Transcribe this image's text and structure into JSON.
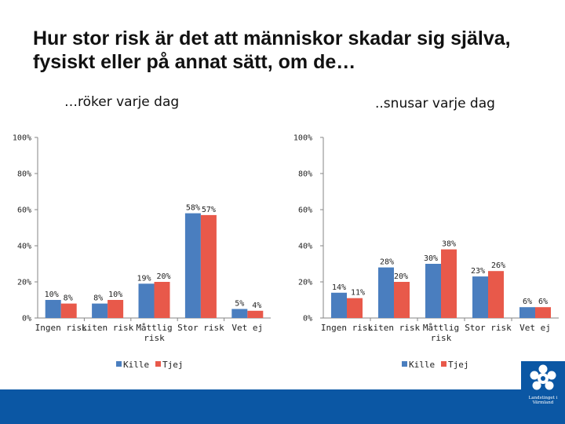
{
  "slide": {
    "title": "Hur stor risk är det att människor skadar sig själva, fysiskt eller på annat sätt, om de…",
    "logo_text": "Landstinget i Värmland"
  },
  "colors": {
    "kille": "#4a7ebf",
    "tjej": "#e8594a",
    "axis": "#868686",
    "band": "#0b57a4"
  },
  "chart_data": [
    {
      "type": "bar",
      "title": "…röker varje dag",
      "categories": [
        "Ingen risk",
        "Liten risk",
        "Måttlig risk",
        "Stor risk",
        "Vet ej"
      ],
      "category_lines": [
        [
          "Ingen risk"
        ],
        [
          "Liten risk"
        ],
        [
          "Måttlig",
          "risk"
        ],
        [
          "Stor risk"
        ],
        [
          "Vet ej"
        ]
      ],
      "series": [
        {
          "name": "Kille",
          "values": [
            10,
            8,
            19,
            58,
            5
          ],
          "labels": [
            "10%",
            "8%",
            "19%",
            "58%",
            "5%"
          ]
        },
        {
          "name": "Tjej",
          "values": [
            8,
            10,
            20,
            57,
            4
          ],
          "labels": [
            "8%",
            "10%",
            "20%",
            "57%",
            "4%"
          ]
        }
      ],
      "yticks": [
        "0%",
        "20%",
        "40%",
        "60%",
        "80%",
        "100%"
      ],
      "ylim": [
        0,
        100
      ],
      "legend": [
        "Kille",
        "Tjej"
      ],
      "legend_position": "bottom"
    },
    {
      "type": "bar",
      "title": "..snusar varje dag",
      "categories": [
        "Ingen risk",
        "Liten risk",
        "Måttlig risk",
        "Stor risk",
        "Vet ej"
      ],
      "category_lines": [
        [
          "Ingen risk"
        ],
        [
          "Liten risk"
        ],
        [
          "Måttlig",
          "risk"
        ],
        [
          "Stor risk"
        ],
        [
          "Vet ej"
        ]
      ],
      "series": [
        {
          "name": "Kille",
          "values": [
            14,
            28,
            30,
            23,
            6
          ],
          "labels": [
            "14%",
            "28%",
            "30%",
            "23%",
            "6%"
          ]
        },
        {
          "name": "Tjej",
          "values": [
            11,
            20,
            38,
            26,
            6
          ],
          "labels": [
            "11%",
            "20%",
            "38%",
            "26%",
            "6%"
          ]
        }
      ],
      "yticks": [
        "0%",
        "20%",
        "40%",
        "60%",
        "80%",
        "100%"
      ],
      "ylim": [
        0,
        100
      ],
      "legend": [
        "Kille",
        "Tjej"
      ],
      "legend_position": "bottom"
    }
  ]
}
